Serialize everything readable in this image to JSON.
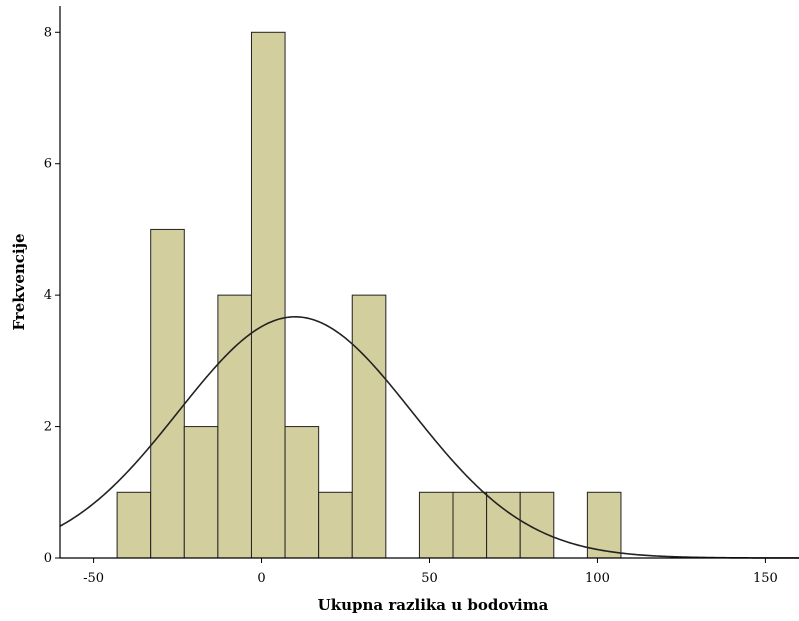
{
  "chart_data": {
    "type": "bar",
    "chart_subtype": "histogram",
    "title": "",
    "xlabel": "Ukupna razlika u bodovima",
    "ylabel": "Frekvencije",
    "xlim": [
      -60,
      160
    ],
    "ylim": [
      0,
      8.4
    ],
    "x_ticks": [
      -50,
      0,
      50,
      100,
      150
    ],
    "y_ticks": [
      0,
      2,
      4,
      6,
      8
    ],
    "x_tick_labels": [
      "-50",
      "0",
      "50",
      "100",
      "150"
    ],
    "y_tick_labels": [
      "0",
      "2",
      "4",
      "6",
      "8"
    ],
    "bin_width": 10,
    "bins": [
      {
        "x0": -43,
        "x1": -33,
        "count": 1
      },
      {
        "x0": -33,
        "x1": -23,
        "count": 5
      },
      {
        "x0": -23,
        "x1": -13,
        "count": 2
      },
      {
        "x0": -13,
        "x1": -3,
        "count": 4
      },
      {
        "x0": -3,
        "x1": 7,
        "count": 8
      },
      {
        "x0": 7,
        "x1": 17,
        "count": 2
      },
      {
        "x0": 17,
        "x1": 27,
        "count": 1
      },
      {
        "x0": 27,
        "x1": 37,
        "count": 4
      },
      {
        "x0": 37,
        "x1": 47,
        "count": 0
      },
      {
        "x0": 47,
        "x1": 57,
        "count": 1
      },
      {
        "x0": 57,
        "x1": 67,
        "count": 1
      },
      {
        "x0": 67,
        "x1": 77,
        "count": 1
      },
      {
        "x0": 77,
        "x1": 87,
        "count": 1
      },
      {
        "x0": 87,
        "x1": 97,
        "count": 0
      },
      {
        "x0": 97,
        "x1": 107,
        "count": 1
      }
    ],
    "normal_curve": {
      "mean": 10,
      "peak": 3.67
    },
    "grid": false,
    "legend": "none",
    "colors": {
      "bar_fill": "#d3ce9d",
      "bar_stroke": "#222222",
      "curve": "#222222",
      "axis": "#000000"
    }
  }
}
